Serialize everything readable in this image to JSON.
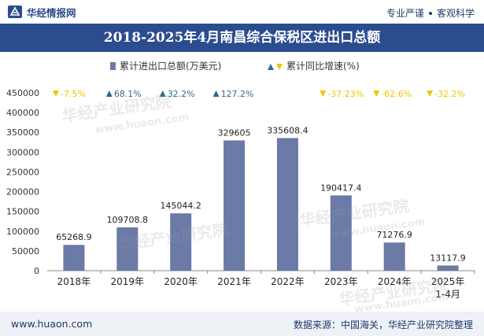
{
  "header": {
    "brand_name": "华经情报网",
    "tagline_1": "专业严谨",
    "tagline_2": "客观科学"
  },
  "title": "2018-2025年4月南昌综合保税区进出口总额",
  "footer": {
    "website": "www.huaon.com",
    "source": "数据来源：中国海关，华经产业研究院整理"
  },
  "watermark": {
    "text": "华经产业研究院",
    "url": "www.huaon.com"
  },
  "colors": {
    "bar": "#6b7aa6",
    "up": "#2e6b8e",
    "down": "#f2c400",
    "title_bg": "#2b4c8f"
  },
  "chart_data": {
    "type": "bar",
    "categories": [
      "2018年",
      "2019年",
      "2020年",
      "2021年",
      "2022年",
      "2023年",
      "2024年",
      "2025年 1-4月"
    ],
    "category_lines": [
      [
        "2018年"
      ],
      [
        "2019年"
      ],
      [
        "2020年"
      ],
      [
        "2021年"
      ],
      [
        "2022年"
      ],
      [
        "2023年"
      ],
      [
        "2024年"
      ],
      [
        "2025年",
        "1-4月"
      ]
    ],
    "series": [
      {
        "name": "累计进出口总额(万美元)",
        "values": [
          65268.9,
          109708.8,
          145044.2,
          329605,
          335608.4,
          190417.4,
          71276.9,
          13117.9
        ],
        "labels": [
          "65268.9",
          "109708.8",
          "145044.2",
          "329605",
          "335608.4",
          "190417.4",
          "71276.9",
          "13117.9"
        ]
      },
      {
        "name": "累计同比增速(%)",
        "values": [
          -7.5,
          68.1,
          32.2,
          127.2,
          null,
          -37.23,
          -62.6,
          -32.2
        ],
        "labels": [
          "-7.5%",
          "68.1%",
          "32.2%",
          "127.2%",
          "",
          "-37.23%",
          "-62.6%",
          "-32.2%"
        ]
      }
    ],
    "ylim": [
      0,
      450000
    ],
    "yticks": [
      0,
      50000,
      100000,
      150000,
      200000,
      250000,
      300000,
      350000,
      400000,
      450000
    ],
    "ytick_labels": [
      "0",
      "50000",
      "100000",
      "150000",
      "200000",
      "250000",
      "300000",
      "350000",
      "400000",
      "450000"
    ],
    "legend_position": "top-center"
  }
}
